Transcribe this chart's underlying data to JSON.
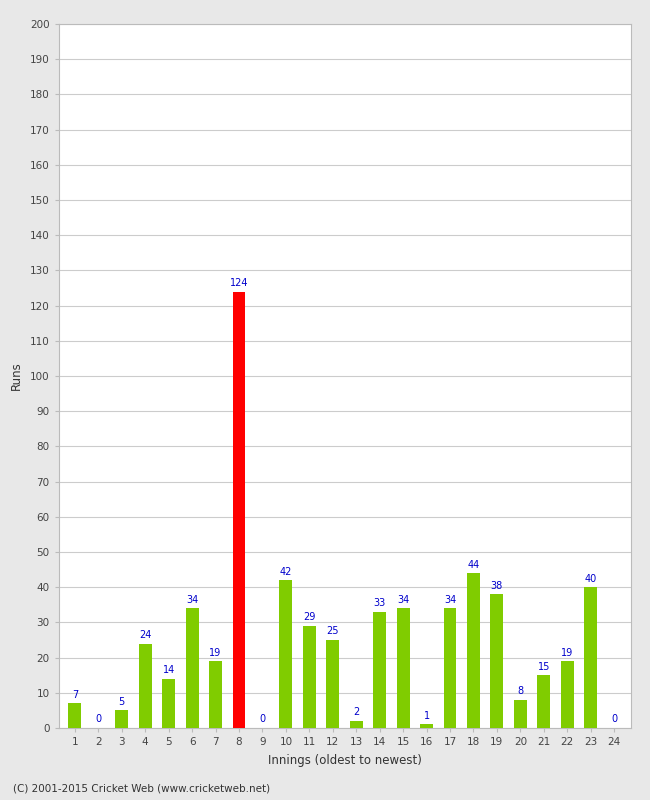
{
  "innings": [
    1,
    2,
    3,
    4,
    5,
    6,
    7,
    8,
    9,
    10,
    11,
    12,
    13,
    14,
    15,
    16,
    17,
    18,
    19,
    20,
    21,
    22,
    23,
    24
  ],
  "values": [
    7,
    0,
    5,
    24,
    14,
    34,
    19,
    124,
    0,
    42,
    29,
    25,
    2,
    33,
    34,
    1,
    34,
    44,
    38,
    8,
    15,
    19,
    40,
    0
  ],
  "colors": [
    "#80cc00",
    "#80cc00",
    "#80cc00",
    "#80cc00",
    "#80cc00",
    "#80cc00",
    "#80cc00",
    "#ff0000",
    "#80cc00",
    "#80cc00",
    "#80cc00",
    "#80cc00",
    "#80cc00",
    "#80cc00",
    "#80cc00",
    "#80cc00",
    "#80cc00",
    "#80cc00",
    "#80cc00",
    "#80cc00",
    "#80cc00",
    "#80cc00",
    "#80cc00",
    "#80cc00"
  ],
  "xlabel": "Innings (oldest to newest)",
  "ylabel": "Runs",
  "ylim": [
    0,
    200
  ],
  "yticks": [
    0,
    10,
    20,
    30,
    40,
    50,
    60,
    70,
    80,
    90,
    100,
    110,
    120,
    130,
    140,
    150,
    160,
    170,
    180,
    190,
    200
  ],
  "figure_bg": "#e8e8e8",
  "plot_bg": "#ffffff",
  "grid_color": "#cccccc",
  "label_color": "#0000cc",
  "tick_label_color": "#444444",
  "footer": "(C) 2001-2015 Cricket Web (www.cricketweb.net)",
  "bar_width": 0.55
}
